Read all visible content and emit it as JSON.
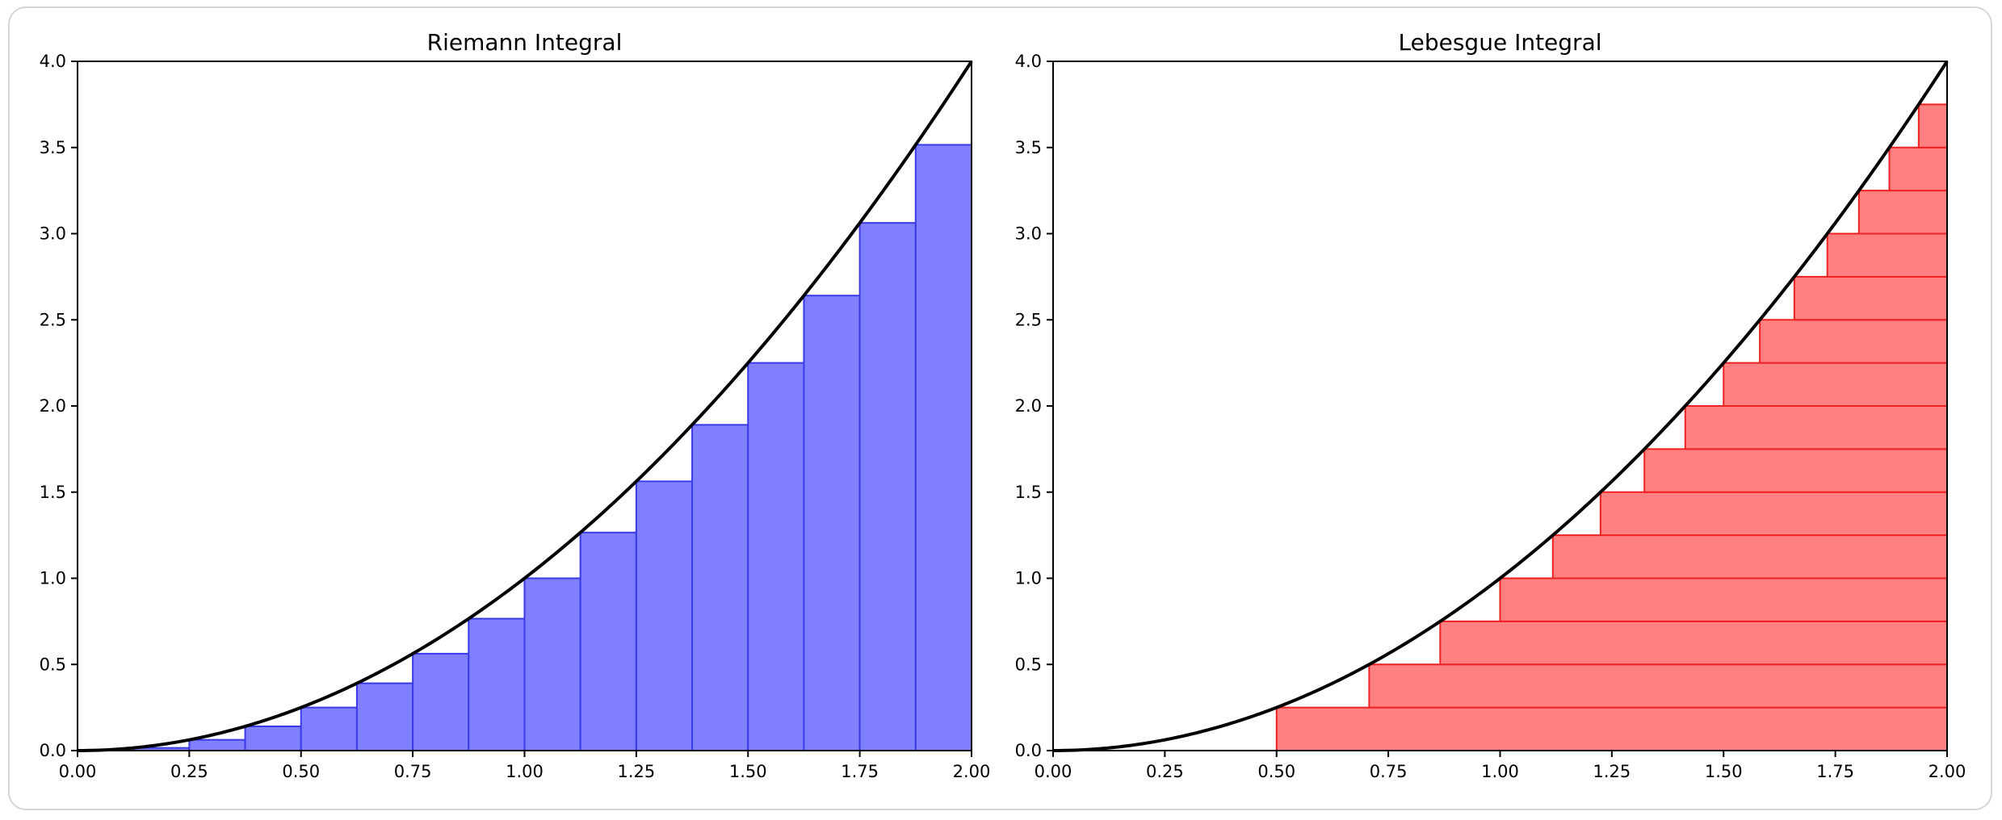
{
  "chart_data": [
    {
      "type": "bar",
      "title": "Riemann Integral",
      "xlabel": "",
      "ylabel": "",
      "xlim": [
        0,
        2
      ],
      "ylim": [
        0,
        4
      ],
      "xticks": [
        "0.00",
        "0.25",
        "0.50",
        "0.75",
        "1.00",
        "1.25",
        "1.50",
        "1.75",
        "2.00"
      ],
      "yticks": [
        "0.0",
        "0.5",
        "1.0",
        "1.5",
        "2.0",
        "2.5",
        "3.0",
        "3.5",
        "4.0"
      ],
      "curve": {
        "function": "y = x^2",
        "x_range": [
          0,
          2
        ],
        "color": "#000000"
      },
      "bars": {
        "x_left": [
          0.0,
          0.125,
          0.25,
          0.375,
          0.5,
          0.625,
          0.75,
          0.875,
          1.0,
          1.125,
          1.25,
          1.375,
          1.5,
          1.625,
          1.75,
          1.875
        ],
        "width": 0.125,
        "heights": [
          0.0,
          0.0156,
          0.0625,
          0.1406,
          0.25,
          0.3906,
          0.5625,
          0.7656,
          1.0,
          1.2656,
          1.5625,
          1.8906,
          2.25,
          2.6406,
          3.0625,
          3.5156
        ],
        "fill": "#8080ff",
        "edge": "#3a3ae8"
      },
      "grid": false
    },
    {
      "type": "bar",
      "title": "Lebesgue Integral",
      "xlabel": "",
      "ylabel": "",
      "xlim": [
        0,
        2
      ],
      "ylim": [
        0,
        4
      ],
      "xticks": [
        "0.00",
        "0.25",
        "0.50",
        "0.75",
        "1.00",
        "1.25",
        "1.50",
        "1.75",
        "2.00"
      ],
      "yticks": [
        "0.0",
        "0.5",
        "1.0",
        "1.5",
        "2.0",
        "2.5",
        "3.0",
        "3.5",
        "4.0"
      ],
      "curve": {
        "function": "y = x^2",
        "x_range": [
          0,
          2
        ],
        "color": "#000000"
      },
      "horizontal_bars": {
        "y_bottom": [
          0.0,
          0.25,
          0.5,
          0.75,
          1.0,
          1.25,
          1.5,
          1.75,
          2.0,
          2.25,
          2.5,
          2.75,
          3.0,
          3.25,
          3.5,
          3.75
        ],
        "height": 0.25,
        "x_start": [
          0.5,
          0.7071,
          0.866,
          1.0,
          1.118,
          1.2247,
          1.3229,
          1.4142,
          1.5,
          1.5811,
          1.6583,
          1.7321,
          1.8028,
          1.8708,
          1.9365,
          2.0
        ],
        "x_end": 2.0,
        "fill": "#ff8080",
        "edge": "#ee2222"
      },
      "grid": false
    }
  ]
}
